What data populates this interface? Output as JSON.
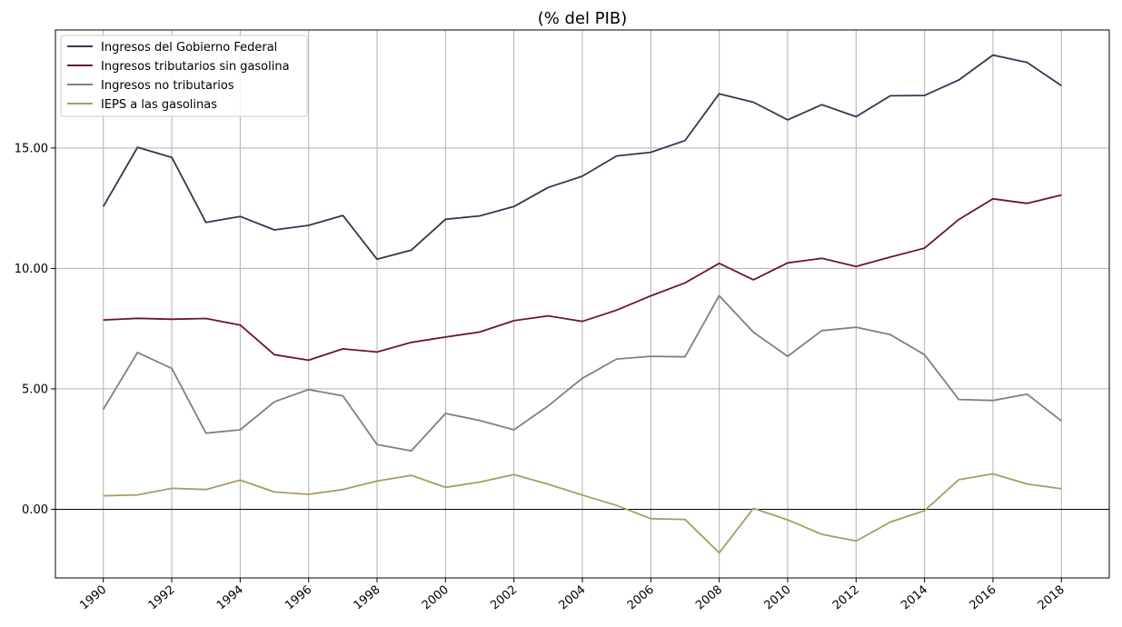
{
  "chart_data": {
    "type": "line",
    "title": "(% del PIB)",
    "xlabel": "",
    "ylabel": "",
    "x": [
      1990,
      1991,
      1992,
      1993,
      1994,
      1995,
      1996,
      1997,
      1998,
      1999,
      2000,
      2001,
      2002,
      2003,
      2004,
      2005,
      2006,
      2007,
      2008,
      2009,
      2010,
      2011,
      2012,
      2013,
      2014,
      2015,
      2016,
      2017,
      2018
    ],
    "xlim": [
      1988.6,
      2019.4
    ],
    "ylim": [
      -2.85,
      19.9
    ],
    "x_ticks": [
      "1990",
      "1992",
      "1994",
      "1996",
      "1998",
      "2000",
      "2002",
      "2004",
      "2006",
      "2008",
      "2010",
      "2012",
      "2014",
      "2016",
      "2018"
    ],
    "y_ticks": [
      "0.00",
      "5.00",
      "10.00",
      "15.00"
    ],
    "grid": true,
    "legend_position": "top-left",
    "series": [
      {
        "name": "Ingresos del Gobierno Federal",
        "color": "#2d3a4f",
        "values": [
          12.57,
          15.03,
          14.61,
          11.91,
          12.16,
          11.6,
          11.79,
          12.2,
          10.38,
          10.76,
          12.04,
          12.18,
          12.57,
          13.36,
          13.83,
          14.67,
          14.82,
          15.31,
          17.25,
          16.9,
          16.17,
          16.8,
          16.3,
          17.17,
          17.18,
          17.82,
          18.86,
          18.55,
          17.59
        ]
      },
      {
        "name": "Ingresos tributarios sin gasolina",
        "color": "#6b1534",
        "values": [
          7.86,
          7.93,
          7.89,
          7.92,
          7.65,
          6.42,
          6.19,
          6.66,
          6.53,
          6.93,
          7.15,
          7.36,
          7.83,
          8.03,
          7.8,
          8.27,
          8.86,
          9.4,
          10.21,
          9.53,
          10.23,
          10.42,
          10.08,
          10.47,
          10.84,
          12.03,
          12.89,
          12.7,
          13.05
        ]
      },
      {
        "name": "Ingresos no tributarios",
        "color": "#808080",
        "values": [
          4.15,
          6.51,
          5.85,
          3.16,
          3.3,
          4.46,
          4.97,
          4.71,
          2.69,
          2.43,
          3.98,
          3.69,
          3.3,
          4.29,
          5.44,
          6.24,
          6.35,
          6.33,
          8.87,
          7.35,
          6.35,
          7.42,
          7.56,
          7.25,
          6.42,
          4.56,
          4.52,
          4.78,
          3.67
        ]
      },
      {
        "name": "IEPS a las gasolinas",
        "color": "#a89d5e",
        "values": [
          0.56,
          0.6,
          0.87,
          0.82,
          1.21,
          0.72,
          0.62,
          0.82,
          1.17,
          1.41,
          0.91,
          1.13,
          1.44,
          1.04,
          0.59,
          0.16,
          -0.39,
          -0.42,
          -1.81,
          0.04,
          -0.44,
          -1.04,
          -1.32,
          -0.53,
          -0.06,
          1.23,
          1.47,
          1.05,
          0.85
        ]
      }
    ]
  }
}
